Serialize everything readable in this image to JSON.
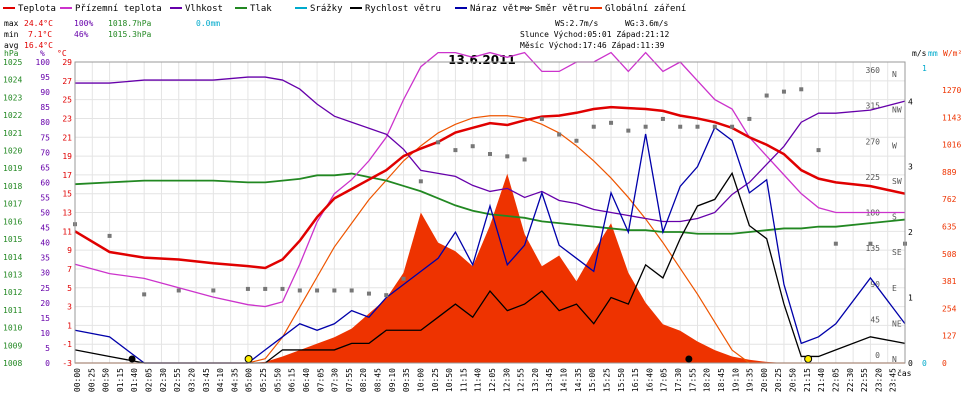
{
  "chart_data": {
    "type": "line",
    "title": "13.6.2011",
    "legend": [
      {
        "label": "Teplota",
        "color": "#e00000"
      },
      {
        "label": "Přízemní teplota",
        "color": "#cc33cc"
      },
      {
        "label": "Vlhkost",
        "color": "#6600aa"
      },
      {
        "label": "Tlak",
        "color": "#228822"
      },
      {
        "label": "Srážky",
        "color": "#00aacc"
      },
      {
        "label": "Rychlost větru",
        "color": "#000000"
      },
      {
        "label": "Náraz větru",
        "color": "#0000aa"
      },
      {
        "label": "Směr větru",
        "color": "#777777"
      },
      {
        "label": "Globální záření",
        "color": "#ee3300"
      }
    ],
    "summary": {
      "max_label": "max",
      "max_temp": "24.4°C",
      "max_hum": "100%",
      "max_press": "1018.7hPa",
      "max_rain": "0.0mm",
      "min_label": "min",
      "min_temp": "7.1°C",
      "min_hum": "46%",
      "min_press": "1015.3hPa",
      "avg_label": "avg",
      "avg_temp": "16.4°C",
      "ws": "WS:2.7m/s",
      "wg": "WG:3.6m/s",
      "sun": "Slunce Východ:05:01   Západ:21:12",
      "moon": "Měsíc  Východ:17:46   Západ:11:39"
    },
    "axes": {
      "hpa_label": "hPa",
      "pct_label": "%",
      "temp_label": "°C",
      "ms_label": "m/s",
      "mm_label": "mm",
      "wm2_label": "W/m²",
      "time_label": "čas",
      "hpa_ticks": [
        "1025",
        "1024",
        "1023",
        "1022",
        "1021",
        "1020",
        "1019",
        "1018",
        "1017",
        "1016",
        "1015",
        "1014",
        "1013",
        "1012",
        "1011",
        "1010",
        "1009",
        "1008"
      ],
      "pct_ticks": [
        "100",
        "95",
        "90",
        "85",
        "80",
        "75",
        "70",
        "65",
        "60",
        "55",
        "50",
        "45",
        "40",
        "35",
        "30",
        "25",
        "20",
        "15",
        "10",
        "5",
        "0"
      ],
      "temp_ticks": [
        "29",
        "27",
        "25",
        "23",
        "21",
        "19",
        "17",
        "15",
        "13",
        "11",
        "9",
        "7",
        "5",
        "3",
        "1",
        "-1",
        "-3"
      ],
      "dir_ticks": [
        {
          "deg": "360",
          "lbl": "N"
        },
        {
          "deg": "315",
          "lbl": "NW"
        },
        {
          "deg": "270",
          "lbl": "W"
        },
        {
          "deg": "225",
          "lbl": "SW"
        },
        {
          "deg": "180",
          "lbl": "S"
        },
        {
          "deg": "135",
          "lbl": "SE"
        },
        {
          "deg": "90",
          "lbl": "E"
        },
        {
          "deg": "45",
          "lbl": "NE"
        },
        {
          "deg": "0",
          "lbl": "N"
        }
      ],
      "ms_ticks": [
        "4",
        "3",
        "2",
        "1",
        "0"
      ],
      "mm_ticks": [
        "1",
        "0"
      ],
      "wm2_ticks": [
        "1270",
        "1143",
        "1016",
        "889",
        "762",
        "635",
        "508",
        "381",
        "254",
        "127",
        "0"
      ],
      "time_ticks": [
        "00:00",
        "00:25",
        "00:50",
        "01:15",
        "01:40",
        "02:05",
        "02:30",
        "02:55",
        "03:20",
        "03:45",
        "04:10",
        "04:35",
        "05:00",
        "05:25",
        "05:50",
        "06:15",
        "06:40",
        "07:05",
        "07:30",
        "07:55",
        "08:20",
        "08:45",
        "09:10",
        "09:35",
        "10:00",
        "10:25",
        "10:50",
        "11:15",
        "11:40",
        "12:05",
        "12:30",
        "12:55",
        "13:20",
        "13:45",
        "14:10",
        "14:35",
        "15:00",
        "15:25",
        "15:50",
        "16:15",
        "16:40",
        "17:05",
        "17:30",
        "17:55",
        "18:20",
        "18:45",
        "19:10",
        "19:35",
        "20:00",
        "20:25",
        "20:50",
        "21:15",
        "21:40",
        "22:05",
        "22:30",
        "22:55",
        "23:20",
        "23:45"
      ]
    },
    "x_hours": [
      0,
      1,
      2,
      3,
      4,
      5,
      5.5,
      6,
      6.5,
      7,
      7.5,
      8,
      8.5,
      9,
      9.5,
      10,
      10.5,
      11,
      11.5,
      12,
      12.5,
      13,
      13.5,
      14,
      14.5,
      15,
      15.5,
      16,
      16.5,
      17,
      17.5,
      18,
      18.5,
      19,
      19.5,
      20,
      20.5,
      21,
      21.5,
      22,
      23,
      24
    ],
    "series": [
      {
        "name": "Teplota",
        "unit": "°C",
        "values": [
          11.0,
          8.8,
          8.2,
          8.0,
          7.6,
          7.3,
          7.1,
          8.0,
          10.0,
          12.5,
          14.5,
          15.5,
          16.5,
          17.5,
          19.0,
          19.8,
          20.5,
          21.5,
          22.0,
          22.5,
          22.3,
          22.8,
          23.2,
          23.3,
          23.6,
          24.0,
          24.2,
          24.1,
          24.0,
          23.8,
          23.3,
          23.0,
          22.6,
          22.0,
          21.0,
          20.2,
          19.2,
          17.5,
          16.6,
          16.2,
          15.8,
          15.0
        ]
      },
      {
        "name": "Přízemní teplota",
        "unit": "°C",
        "values": [
          7.5,
          6.5,
          6.0,
          5.0,
          4.0,
          3.2,
          3.0,
          3.5,
          7.5,
          12.0,
          15.0,
          16.5,
          18.5,
          21.0,
          25.0,
          28.5,
          30.0,
          30.0,
          29.5,
          30.0,
          29.5,
          30.0,
          28.0,
          28.0,
          29.0,
          29.0,
          30.0,
          28.0,
          30.0,
          28.0,
          29.0,
          27.0,
          25.0,
          24.0,
          21.0,
          19.0,
          17.0,
          15.0,
          13.5,
          13.0,
          13.0,
          13.0
        ]
      },
      {
        "name": "Vlhkost",
        "unit": "%",
        "values": [
          93,
          93,
          94,
          94,
          94,
          95,
          95,
          94,
          91,
          86,
          82,
          80,
          78,
          76,
          71,
          64,
          63,
          62,
          59,
          57,
          58,
          55,
          57,
          54,
          53,
          51,
          50,
          49,
          48,
          47,
          47,
          48,
          50,
          56,
          60,
          66,
          72,
          80,
          83,
          83,
          84,
          87
        ]
      },
      {
        "name": "Tlak",
        "unit": "hPa",
        "values": [
          1018.1,
          1018.2,
          1018.3,
          1018.3,
          1018.3,
          1018.2,
          1018.2,
          1018.3,
          1018.4,
          1018.6,
          1018.6,
          1018.7,
          1018.5,
          1018.3,
          1018.0,
          1017.7,
          1017.3,
          1016.9,
          1016.6,
          1016.4,
          1016.3,
          1016.2,
          1016.0,
          1015.9,
          1015.8,
          1015.7,
          1015.6,
          1015.5,
          1015.5,
          1015.4,
          1015.4,
          1015.3,
          1015.3,
          1015.3,
          1015.4,
          1015.5,
          1015.6,
          1015.6,
          1015.7,
          1015.7,
          1015.9,
          1016.1
        ]
      },
      {
        "name": "Rychlost větru",
        "unit": "m/s",
        "values": [
          0.2,
          0.1,
          0.0,
          0.0,
          0.0,
          0.0,
          0.0,
          0.2,
          0.2,
          0.2,
          0.2,
          0.3,
          0.3,
          0.5,
          0.5,
          0.5,
          0.7,
          0.9,
          0.7,
          1.1,
          0.8,
          0.9,
          1.1,
          0.8,
          0.9,
          0.6,
          1.0,
          0.9,
          1.5,
          1.3,
          1.9,
          2.4,
          2.5,
          2.9,
          2.1,
          1.9,
          0.9,
          0.1,
          0.1,
          0.2,
          0.4,
          0.3
        ]
      },
      {
        "name": "Náraz větru",
        "unit": "m/s",
        "values": [
          0.5,
          0.4,
          0.0,
          0.0,
          0.0,
          0.0,
          0.2,
          0.4,
          0.6,
          0.5,
          0.6,
          0.8,
          0.7,
          1.0,
          1.2,
          1.4,
          1.6,
          2.0,
          1.5,
          2.4,
          1.5,
          1.8,
          2.6,
          1.8,
          1.6,
          1.4,
          2.6,
          2.0,
          3.5,
          2.0,
          2.7,
          3.0,
          3.6,
          3.4,
          2.6,
          2.8,
          1.2,
          0.3,
          0.4,
          0.6,
          1.3,
          0.6
        ]
      },
      {
        "name": "Směr větru",
        "unit": "°",
        "values": [
          165,
          150,
          75,
          80,
          80,
          82,
          82,
          82,
          80,
          80,
          80,
          80,
          76,
          74,
          95,
          220,
          270,
          260,
          265,
          255,
          252,
          248,
          300,
          280,
          272,
          290,
          295,
          285,
          290,
          300,
          290,
          290,
          290,
          290,
          300,
          330,
          335,
          338,
          260,
          140,
          140,
          140
        ]
      },
      {
        "name": "Globální záření",
        "unit": "W/m²",
        "values": [
          0,
          0,
          0,
          0,
          0,
          0,
          5,
          30,
          60,
          90,
          120,
          160,
          230,
          300,
          420,
          700,
          560,
          520,
          450,
          640,
          880,
          600,
          450,
          500,
          380,
          520,
          650,
          420,
          280,
          180,
          150,
          100,
          60,
          30,
          15,
          5,
          0,
          0,
          0,
          0,
          0,
          0
        ]
      },
      {
        "name": "Globální záření",
        "unit": "W/m²",
        "values": [
          0,
          0,
          0,
          0,
          0,
          0,
          20,
          120,
          260,
          400,
          540,
          650,
          760,
          850,
          940,
          1010,
          1070,
          1110,
          1140,
          1150,
          1150,
          1140,
          1110,
          1070,
          1010,
          940,
          860,
          770,
          670,
          560,
          440,
          320,
          190,
          60,
          0,
          0,
          0,
          0,
          0,
          0,
          0,
          0
        ]
      }
    ]
  }
}
